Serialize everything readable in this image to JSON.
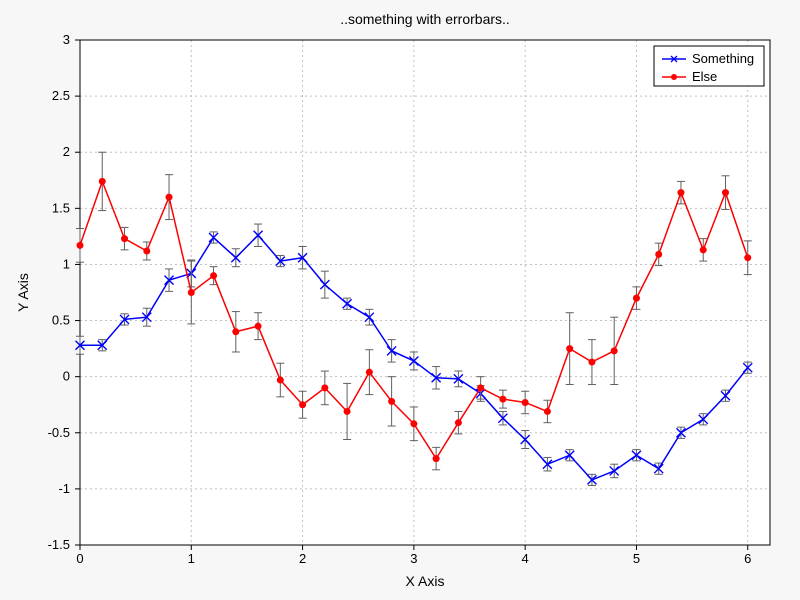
{
  "chart": {
    "type": "line-errorbar",
    "title": "..something with errorbars..",
    "title_fontsize": 14,
    "xlabel": "X Axis",
    "ylabel": "Y Axis",
    "label_fontsize": 14,
    "tick_fontsize": 13,
    "background_color": "#f7f7f7",
    "plot_background": "#ffffff",
    "axis_color": "#000000",
    "grid_color": "#c0c0c0",
    "grid_dash": "2,3",
    "errorbar_color": "#606060",
    "errorbar_cap": 4,
    "marker_size": 3.5,
    "line_width": 1.5,
    "xlim": [
      0,
      6.2
    ],
    "ylim": [
      -1.5,
      3
    ],
    "xticks": [
      0,
      1,
      2,
      3,
      4,
      5,
      6
    ],
    "yticks": [
      -1.5,
      -1.0,
      -0.5,
      0.0,
      0.5,
      1.0,
      1.5,
      2.0,
      2.5,
      3.0
    ],
    "ytick_labels": [
      "-1.5",
      "-1",
      "-0.5",
      "0",
      "0.5",
      "1",
      "1.5",
      "2",
      "2.5",
      "3"
    ],
    "legend": {
      "position": "top-right",
      "border_color": "#000000",
      "background": "#ffffff"
    },
    "series": [
      {
        "name": "Something",
        "color": "#0000fd",
        "marker": "x",
        "x": [
          0.0,
          0.2,
          0.4,
          0.6,
          0.8,
          1.0,
          1.2,
          1.4,
          1.6,
          1.8,
          2.0,
          2.2,
          2.4,
          2.6,
          2.8,
          3.0,
          3.2,
          3.4,
          3.6,
          3.8,
          4.0,
          4.2,
          4.4,
          4.6,
          4.8,
          5.0,
          5.2,
          5.4,
          5.6,
          5.8,
          6.0
        ],
        "y": [
          0.28,
          0.28,
          0.51,
          0.53,
          0.86,
          0.92,
          1.24,
          1.06,
          1.26,
          1.03,
          1.06,
          0.82,
          0.65,
          0.53,
          0.23,
          0.14,
          -0.01,
          -0.02,
          -0.15,
          -0.37,
          -0.56,
          -0.78,
          -0.7,
          -0.92,
          -0.84,
          -0.7,
          -0.82,
          -0.5,
          -0.38,
          -0.17,
          0.08
        ],
        "err": [
          0.08,
          0.05,
          0.05,
          0.08,
          0.1,
          0.12,
          0.05,
          0.08,
          0.1,
          0.05,
          0.1,
          0.12,
          0.05,
          0.07,
          0.1,
          0.08,
          0.1,
          0.07,
          0.07,
          0.06,
          0.08,
          0.06,
          0.05,
          0.05,
          0.06,
          0.05,
          0.05,
          0.05,
          0.05,
          0.05,
          0.05
        ]
      },
      {
        "name": "Else",
        "color": "#fd0000",
        "marker": "dot",
        "x": [
          0.0,
          0.2,
          0.4,
          0.6,
          0.8,
          1.0,
          1.2,
          1.4,
          1.6,
          1.8,
          2.0,
          2.2,
          2.4,
          2.6,
          2.8,
          3.0,
          3.2,
          3.4,
          3.6,
          3.8,
          4.0,
          4.2,
          4.4,
          4.6,
          4.8,
          5.0,
          5.2,
          5.4,
          5.6,
          5.8,
          6.0
        ],
        "y": [
          1.17,
          1.74,
          1.23,
          1.12,
          1.6,
          0.75,
          0.9,
          0.4,
          0.45,
          -0.03,
          -0.25,
          -0.1,
          -0.31,
          0.04,
          -0.22,
          -0.42,
          -0.73,
          -0.41,
          -0.1,
          -0.2,
          -0.23,
          -0.31,
          0.25,
          0.13,
          0.23,
          0.7,
          1.09,
          1.64,
          1.13,
          1.64,
          1.06
        ],
        "err": [
          0.15,
          0.26,
          0.1,
          0.08,
          0.2,
          0.28,
          0.08,
          0.18,
          0.12,
          0.15,
          0.12,
          0.15,
          0.25,
          0.2,
          0.22,
          0.15,
          0.1,
          0.1,
          0.1,
          0.08,
          0.1,
          0.1,
          0.32,
          0.2,
          0.3,
          0.1,
          0.1,
          0.1,
          0.1,
          0.15,
          0.15
        ]
      }
    ]
  }
}
